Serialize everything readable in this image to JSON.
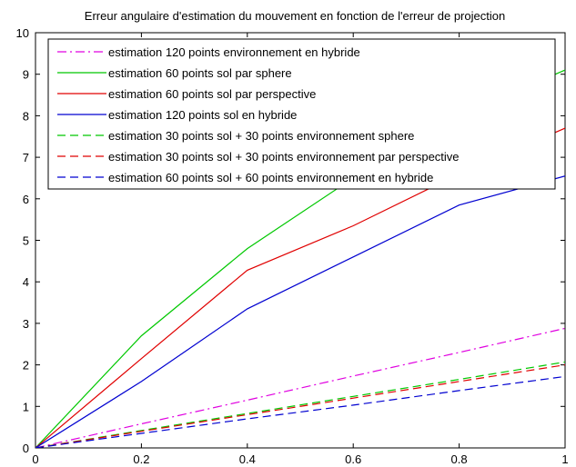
{
  "chart_data": {
    "type": "line",
    "title": "Erreur angulaire d'estimation du mouvement en fonction de l'erreur de projection",
    "xlabel": "",
    "ylabel": "",
    "xlim": [
      0,
      1
    ],
    "ylim": [
      0,
      10
    ],
    "x_ticks": [
      0,
      0.2,
      0.4,
      0.6,
      0.8,
      1
    ],
    "x_tick_labels": [
      "0",
      "0.2",
      "0.4",
      "0.6",
      "0.8",
      "1"
    ],
    "y_ticks": [
      0,
      1,
      2,
      3,
      4,
      5,
      6,
      7,
      8,
      9,
      10
    ],
    "y_tick_labels": [
      "0",
      "1",
      "2",
      "3",
      "4",
      "5",
      "6",
      "7",
      "8",
      "9",
      "10"
    ],
    "grid": false,
    "legend_position": "top-left",
    "series": [
      {
        "name": "estimation 120 points environnement en hybride",
        "color": "#e000e0",
        "dash": "dashdot",
        "x": [
          0,
          0.2,
          0.4,
          0.6,
          0.8,
          1
        ],
        "y": [
          0,
          0.58,
          1.15,
          1.73,
          2.3,
          2.88
        ]
      },
      {
        "name": "estimation 60 points sol par sphere",
        "color": "#00c800",
        "dash": "solid",
        "x": [
          0,
          0.2,
          0.4,
          0.6,
          0.8,
          1
        ],
        "y": [
          0,
          2.7,
          4.8,
          6.5,
          8.0,
          9.1
        ]
      },
      {
        "name": "estimation 60 points sol par perspective",
        "color": "#e00000",
        "dash": "solid",
        "x": [
          0,
          0.2,
          0.4,
          0.6,
          0.8,
          1
        ],
        "y": [
          0,
          2.15,
          4.28,
          5.35,
          6.6,
          7.7
        ]
      },
      {
        "name": "estimation 120 points sol en hybride",
        "color": "#0000d0",
        "dash": "solid",
        "x": [
          0,
          0.2,
          0.4,
          0.6,
          0.8,
          1
        ],
        "y": [
          0,
          1.6,
          3.35,
          4.6,
          5.85,
          6.55
        ]
      },
      {
        "name": "estimation 30 points sol + 30 points environnement sphere",
        "color": "#00c800",
        "dash": "dashed",
        "x": [
          0,
          0.2,
          0.4,
          0.6,
          0.8,
          1
        ],
        "y": [
          0,
          0.42,
          0.83,
          1.24,
          1.65,
          2.07
        ]
      },
      {
        "name": "estimation 30 points sol + 30 points environnement par perspective",
        "color": "#e00000",
        "dash": "dashed",
        "x": [
          0,
          0.2,
          0.4,
          0.6,
          0.8,
          1
        ],
        "y": [
          0,
          0.4,
          0.8,
          1.2,
          1.6,
          2.0
        ]
      },
      {
        "name": "estimation 60 points sol + 60 points environnement en hybride",
        "color": "#0000d0",
        "dash": "dashed",
        "x": [
          0,
          0.2,
          0.4,
          0.6,
          0.8,
          1
        ],
        "y": [
          0,
          0.35,
          0.7,
          1.03,
          1.38,
          1.72
        ]
      }
    ]
  }
}
